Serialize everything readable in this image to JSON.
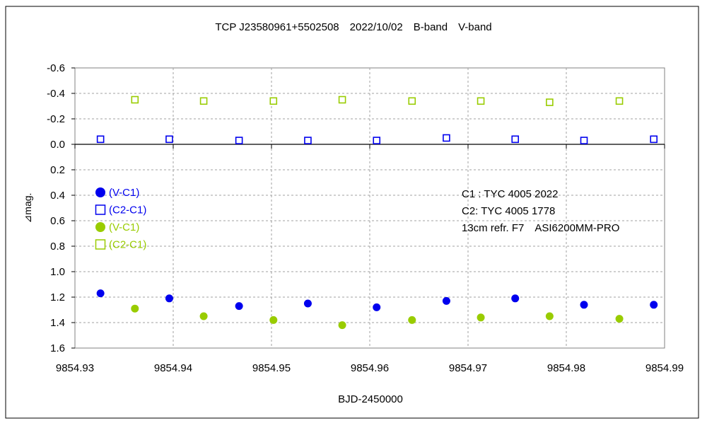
{
  "chart_data": {
    "type": "scatter",
    "title": "TCP J23580961+5502508　2022/10/02　B-band　V-band",
    "xlabel": "BJD-2450000",
    "ylabel": "⊿mag.",
    "xlim": [
      9854.93,
      9854.99
    ],
    "ylim": [
      -0.6,
      1.6
    ],
    "y_inverted": true,
    "grid": true,
    "x_ticks": [
      9854.93,
      9854.94,
      9854.95,
      9854.96,
      9854.97,
      9854.98,
      9854.99
    ],
    "x_tick_labels": [
      "9854.93",
      "9854.94",
      "9854.95",
      "9854.96",
      "9854.97",
      "9854.98",
      "9854.99"
    ],
    "y_ticks": [
      -0.6,
      -0.4,
      -0.2,
      0.0,
      0.2,
      0.4,
      0.6,
      0.8,
      1.0,
      1.2,
      1.4,
      1.6
    ],
    "y_tick_labels": [
      "-0.6",
      "-0.4",
      "-0.2",
      "0.0",
      "0.2",
      "0.4",
      "0.6",
      "0.8",
      "1.0",
      "1.2",
      "1.4",
      "1.6"
    ],
    "legend_position": "left",
    "series": [
      {
        "name": "(V-C1)",
        "color": "#0000ee",
        "marker": "filled-circle",
        "x": [
          9854.9326,
          9854.9396,
          9854.9467,
          9854.9537,
          9854.9607,
          9854.9678,
          9854.9748,
          9854.9818,
          9854.9889
        ],
        "y": [
          1.17,
          1.21,
          1.27,
          1.25,
          1.28,
          1.23,
          1.21,
          1.26,
          1.26
        ]
      },
      {
        "name": "(C2-C1)",
        "color": "#0000ee",
        "marker": "hollow-square",
        "x": [
          9854.9326,
          9854.9396,
          9854.9467,
          9854.9537,
          9854.9607,
          9854.9678,
          9854.9748,
          9854.9818,
          9854.9889
        ],
        "y": [
          -0.04,
          -0.04,
          -0.03,
          -0.03,
          -0.03,
          -0.05,
          -0.04,
          -0.03,
          -0.04
        ]
      },
      {
        "name": "(V-C1)",
        "color": "#99cc00",
        "marker": "filled-circle",
        "x": [
          9854.9361,
          9854.9431,
          9854.9502,
          9854.9572,
          9854.9643,
          9854.9713,
          9854.9783,
          9854.9854
        ],
        "y": [
          1.29,
          1.35,
          1.38,
          1.42,
          1.38,
          1.36,
          1.35,
          1.37
        ]
      },
      {
        "name": "(C2-C1)",
        "color": "#99cc00",
        "marker": "hollow-square",
        "x": [
          9854.9361,
          9854.9431,
          9854.9502,
          9854.9572,
          9854.9643,
          9854.9713,
          9854.9783,
          9854.9854
        ],
        "y": [
          -0.35,
          -0.34,
          -0.34,
          -0.35,
          -0.34,
          -0.34,
          -0.33,
          -0.34
        ]
      }
    ],
    "annotations": [
      "C1 : TYC 4005 2022",
      "C2: TYC 4005 1778",
      "13cm refr. F7　ASI6200MM-PRO"
    ]
  }
}
